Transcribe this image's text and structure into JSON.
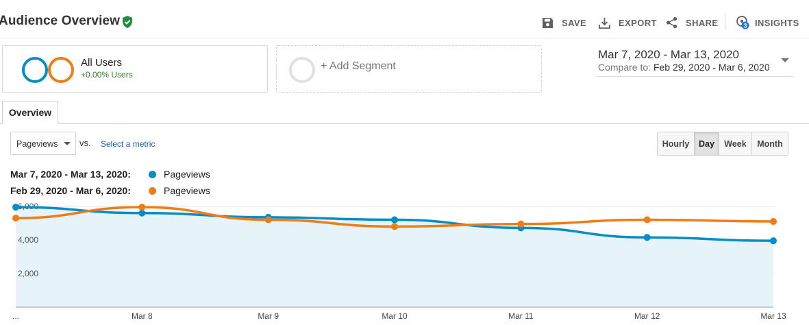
{
  "header": {
    "title": "Audience Overview",
    "actions": {
      "save": "SAVE",
      "export": "EXPORT",
      "share": "SHARE",
      "insights": "INSIGHTS",
      "insights_badge": "3"
    }
  },
  "segments": {
    "active": {
      "name": "All Users",
      "delta": "+0.00% Users"
    },
    "add_label": "+ Add Segment"
  },
  "date_range": {
    "primary": "Mar 7, 2020 - Mar 13, 2020",
    "compare_label": "Compare to:",
    "compare_range": "Feb 29, 2020 - Mar 6, 2020"
  },
  "tabs": [
    {
      "label": "Overview",
      "active": true
    }
  ],
  "controls": {
    "metric_selected": "Pageviews",
    "vs_label": "vs.",
    "select_metric_link": "Select a metric",
    "granularity": [
      "Hourly",
      "Day",
      "Week",
      "Month"
    ],
    "granularity_active": "Day"
  },
  "legend": [
    {
      "range": "Mar 7, 2020 - Mar 13, 2020:",
      "metric": "Pageviews",
      "color": "#058dc7"
    },
    {
      "range": "Feb 29, 2020 - Mar 6, 2020:",
      "metric": "Pageviews",
      "color": "#ed7e17"
    }
  ],
  "chart_data": {
    "type": "line",
    "x": [
      "...",
      "Mar 8",
      "Mar 9",
      "Mar 10",
      "Mar 11",
      "Mar 12",
      "Mar 13"
    ],
    "yticks": [
      "2,000",
      "4,000",
      "6,000"
    ],
    "ylim": [
      0,
      6000
    ],
    "grid": true,
    "series": [
      {
        "name": "Mar 7, 2020 - Mar 13, 2020: Pageviews",
        "color": "#058dc7",
        "area": true,
        "values": [
          5950,
          5600,
          5350,
          5200,
          4720,
          4150,
          3950
        ]
      },
      {
        "name": "Feb 29, 2020 - Mar 6, 2020: Pageviews",
        "color": "#ed7e17",
        "area": false,
        "values": [
          5300,
          5950,
          5200,
          4800,
          4950,
          5200,
          5100
        ]
      }
    ]
  }
}
